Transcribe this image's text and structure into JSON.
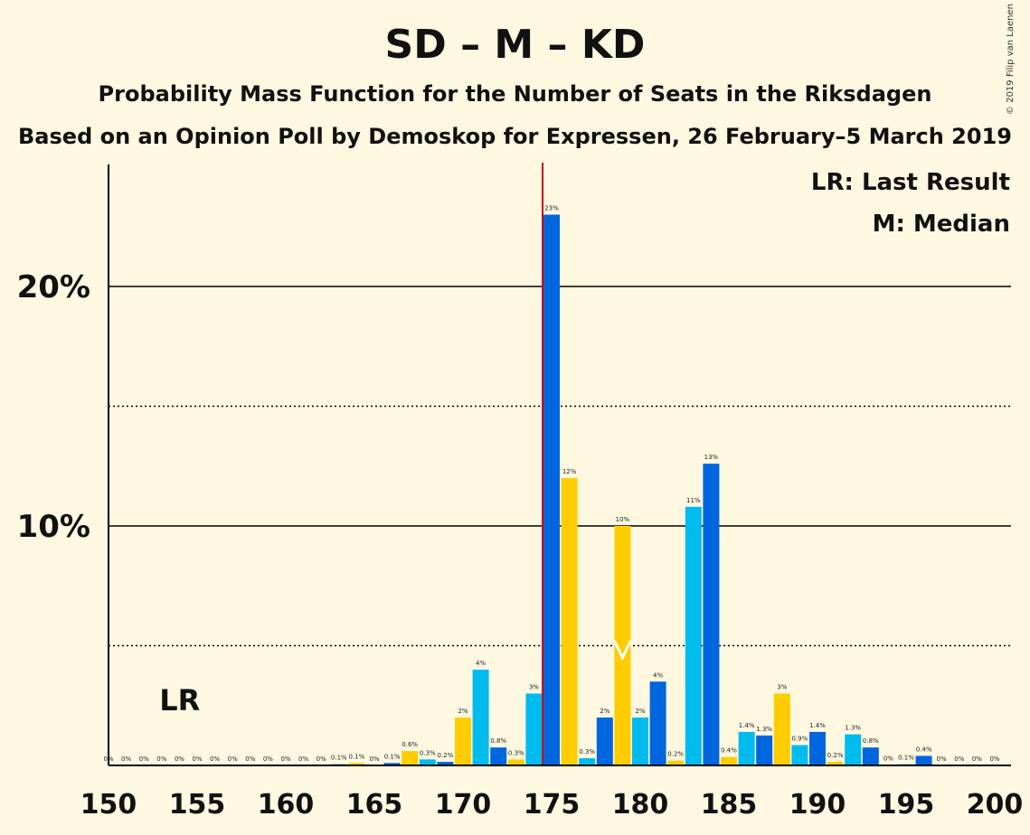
{
  "chart_data": {
    "type": "bar",
    "title": "SD – M – KD",
    "subtitle": "Probability Mass Function for the Number of Seats in the Riksdagen",
    "subtitle2": "Based on an Opinion Poll by Demoskop for Expressen, 26 February–5 March 2019",
    "copyright": "© 2019 Filip van Laenen",
    "x": [
      150,
      151,
      152,
      153,
      154,
      155,
      156,
      157,
      158,
      159,
      160,
      161,
      162,
      163,
      164,
      165,
      166,
      167,
      168,
      169,
      170,
      171,
      172,
      173,
      174,
      175,
      176,
      177,
      178,
      179,
      180,
      181,
      182,
      183,
      184,
      185,
      186,
      187,
      188,
      189,
      190,
      191,
      192,
      193,
      194,
      195,
      196,
      197,
      198,
      199,
      200
    ],
    "values": [
      0,
      0,
      0,
      0,
      0,
      0,
      0,
      0,
      0,
      0,
      0,
      0,
      0,
      0.05,
      0.1,
      0,
      0.1,
      0.6,
      0.25,
      0.15,
      2,
      4,
      0.75,
      0.25,
      3,
      23,
      12,
      0.3,
      2,
      10,
      2,
      3.5,
      0.2,
      10.8,
      12.6,
      0.35,
      1.4,
      1.25,
      3,
      0.85,
      1.4,
      0.15,
      1.3,
      0.75,
      0.02,
      0.05,
      0.4,
      0,
      0,
      0,
      0
    ],
    "labels": [
      "0%",
      "0%",
      "0%",
      "0%",
      "0%",
      "0%",
      "0%",
      "0%",
      "0%",
      "0%",
      "0%",
      "0%",
      "0%",
      "0.1%",
      "0.1%",
      "0%",
      "0.1%",
      "0.6%",
      "0.3%",
      "0.2%",
      "2%",
      "4%",
      "0.8%",
      "0.3%",
      "3%",
      "23%",
      "12%",
      "0.3%",
      "2%",
      "10%",
      "2%",
      "4%",
      "0.2%",
      "11%",
      "13%",
      "0.4%",
      "1.4%",
      "1.3%",
      "3%",
      "0.9%",
      "1.4%",
      "0.2%",
      "1.3%",
      "0.8%",
      "0%",
      "0.1%",
      "0.4%",
      "0%",
      "0%",
      "0%",
      "0%"
    ],
    "xticks": [
      150,
      155,
      160,
      165,
      170,
      175,
      180,
      185,
      190,
      195,
      200
    ],
    "yticks": [
      {
        "value": 10,
        "label": "10%"
      },
      {
        "value": 20,
        "label": "20%"
      }
    ],
    "dotted_lines": [
      5,
      15
    ],
    "ylim": [
      0,
      25
    ],
    "majority_line": 175,
    "last_result": {
      "x": 153,
      "label": "LR"
    },
    "median": {
      "x": 179
    },
    "legend": [
      "LR: Last Result",
      "M: Median"
    ],
    "colors": {
      "dark_blue": "#0066dd",
      "light_blue": "#00bbee",
      "yellow": "#ffcc00",
      "majority": "#cc0000"
    }
  }
}
